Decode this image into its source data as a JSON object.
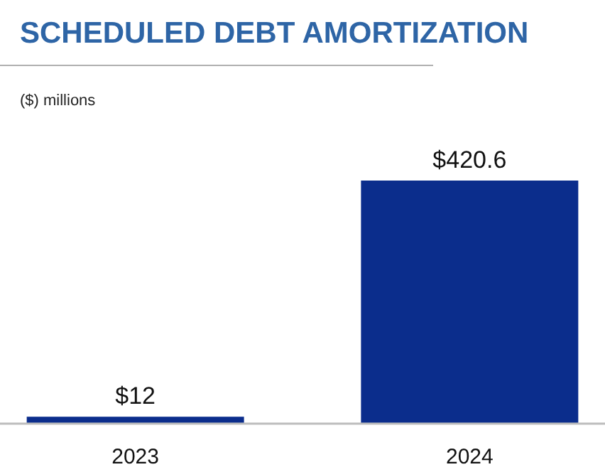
{
  "chart_data": {
    "type": "bar",
    "title": "SCHEDULED DEBT AMORTIZATION",
    "annotations": [
      "($) millions"
    ],
    "categories": [
      "2023",
      "2024"
    ],
    "values": [
      12,
      420.6
    ],
    "color": "#0b2d8c",
    "data_labels": true,
    "value_labels": [
      "$12",
      "$420.6"
    ]
  }
}
